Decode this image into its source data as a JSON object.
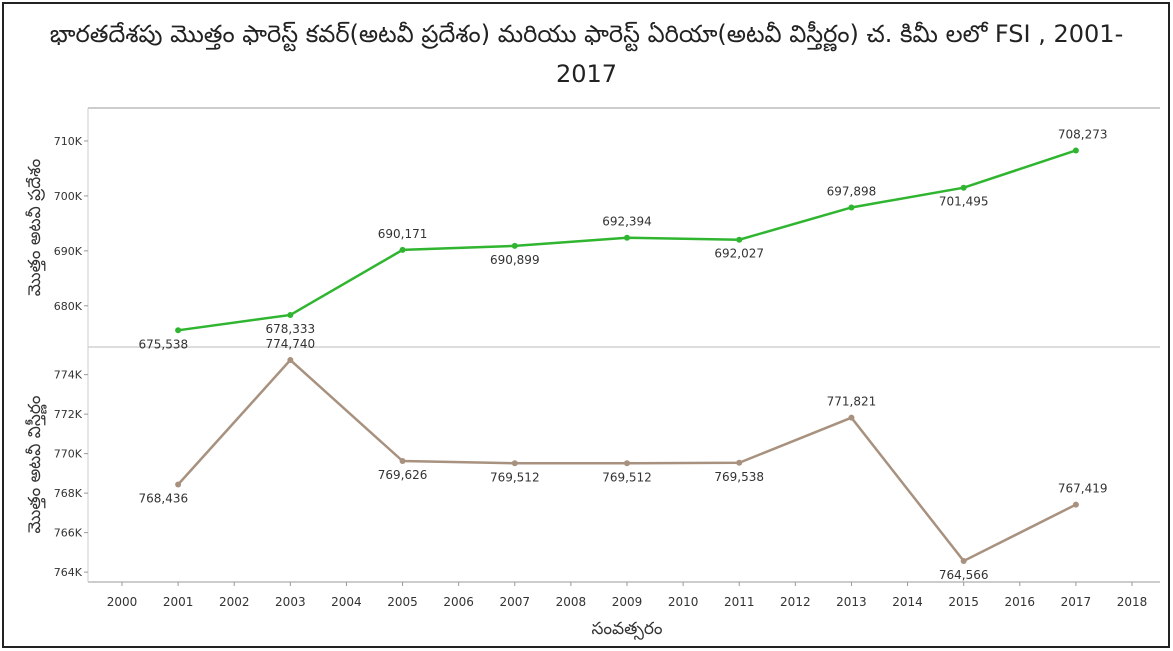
{
  "chart_data": [
    {
      "type": "line",
      "title": "భారతదేశపు మొత్తం ఫారెస్ట్ కవర్(అటవీ ప్రదేశం) మరియు ఫారెస్ట్ ఏరియా(అటవీ విస్తీర్ణం) చ. కిమీ లలో FSI , 2001-2017",
      "ylabel": "మొత్తం అటవీ ప్రదేశం",
      "x": [
        2001,
        2003,
        2005,
        2007,
        2009,
        2011,
        2013,
        2015,
        2017
      ],
      "values": [
        675538,
        678333,
        690171,
        690899,
        692394,
        692027,
        697898,
        701495,
        708273
      ],
      "value_labels": [
        "675,538",
        "678,333",
        "690,171",
        "690,899",
        "692,394",
        "692,027",
        "697,898",
        "701,495",
        "708,273"
      ],
      "color": "#2fb52f",
      "xlim": [
        2000,
        2018
      ],
      "ylim": [
        672500,
        716000
      ],
      "yticks": [
        {
          "value": 680000,
          "label": "680K"
        },
        {
          "value": 690000,
          "label": "690K"
        },
        {
          "value": 700000,
          "label": "700K"
        },
        {
          "value": 710000,
          "label": "710K"
        }
      ]
    },
    {
      "type": "line",
      "ylabel": "మొత్తం అటవీ విస్తీర్ణం",
      "xlabel": "సంవత్సరం",
      "x": [
        2001,
        2003,
        2005,
        2007,
        2009,
        2011,
        2013,
        2015,
        2017
      ],
      "values": [
        768436,
        774740,
        769626,
        769512,
        769512,
        769538,
        771821,
        764566,
        767419
      ],
      "value_labels": [
        "768,436",
        "774,740",
        "769,626",
        "769,512",
        "769,512",
        "769,538",
        "771,821",
        "764,566",
        "767,419"
      ],
      "color": "#a8927f",
      "xlim": [
        2000,
        2018
      ],
      "xticks": [
        2000,
        2001,
        2002,
        2003,
        2004,
        2005,
        2006,
        2007,
        2008,
        2009,
        2010,
        2011,
        2012,
        2013,
        2014,
        2015,
        2016,
        2017,
        2018
      ],
      "ylim": [
        763500,
        775400
      ],
      "yticks": [
        {
          "value": 764000,
          "label": "764K"
        },
        {
          "value": 766000,
          "label": "766K"
        },
        {
          "value": 768000,
          "label": "768K"
        },
        {
          "value": 770000,
          "label": "770K"
        },
        {
          "value": 772000,
          "label": "772K"
        },
        {
          "value": 774000,
          "label": "774K"
        }
      ]
    }
  ]
}
